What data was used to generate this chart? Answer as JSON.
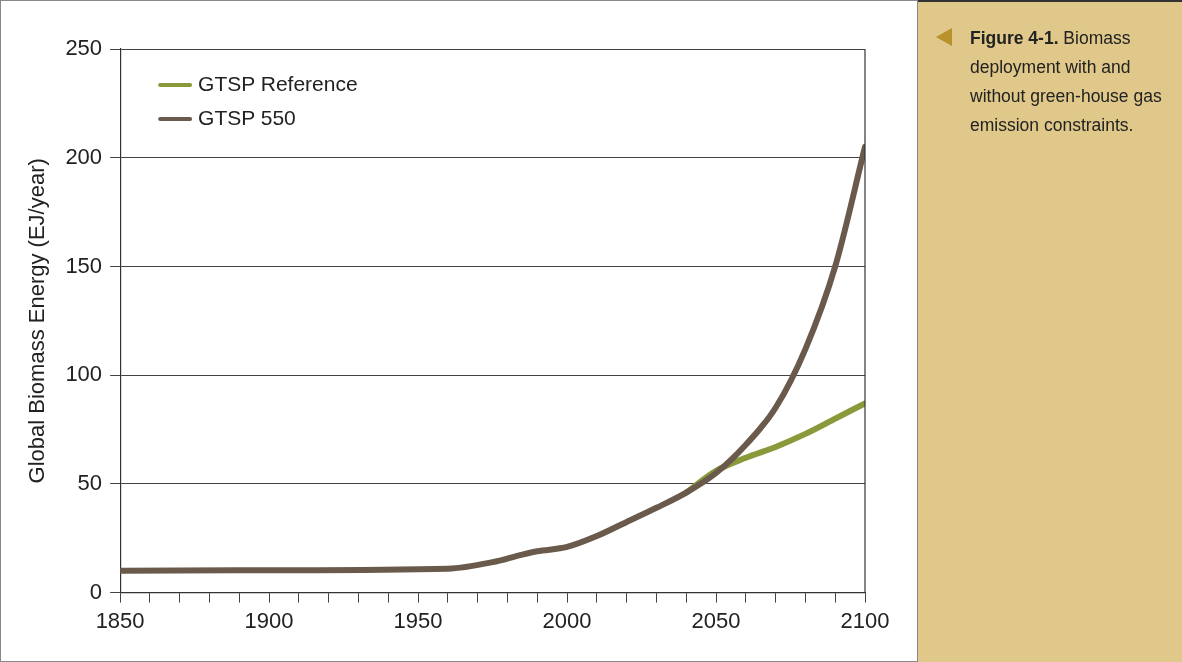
{
  "chart_data": {
    "type": "line",
    "x": [
      1850,
      1900,
      1960,
      1975,
      1985,
      1990,
      2000,
      2010,
      2020,
      2030,
      2040,
      2050,
      2060,
      2070,
      2080,
      2090,
      2100
    ],
    "series": [
      {
        "name": "GTSP Reference",
        "color": "#8a9a3a",
        "values": [
          null,
          null,
          null,
          null,
          null,
          null,
          null,
          null,
          null,
          null,
          46,
          56,
          62,
          67,
          73,
          80,
          87
        ]
      },
      {
        "name": "GTSP 550",
        "color": "#6a5a4c",
        "values": [
          10,
          10.3,
          11,
          14,
          17.5,
          19,
          21,
          26,
          32.5,
          39,
          46,
          55,
          68,
          85,
          112,
          150,
          205
        ]
      }
    ],
    "ylabel": "Global Biomass Energy (EJ/year)",
    "xlim": [
      1850,
      2100
    ],
    "xticks": [
      1850,
      {
        "value": 1860,
        "label": null
      },
      {
        "value": 1870,
        "label": null
      },
      {
        "value": 1880,
        "label": null
      },
      {
        "value": 1890,
        "label": null
      },
      1900,
      {
        "value": 1910,
        "label": null
      },
      {
        "value": 1920,
        "label": null
      },
      {
        "value": 1930,
        "label": null
      },
      {
        "value": 1940,
        "label": null
      },
      1950,
      {
        "value": 1960,
        "label": null
      },
      {
        "value": 1970,
        "label": null
      },
      {
        "value": 1980,
        "label": null
      },
      {
        "value": 1990,
        "label": null
      },
      2000,
      {
        "value": 2010,
        "label": null
      },
      {
        "value": 2020,
        "label": null
      },
      {
        "value": 2030,
        "label": null
      },
      {
        "value": 2040,
        "label": null
      },
      2050,
      {
        "value": 2060,
        "label": null
      },
      {
        "value": 2070,
        "label": null
      },
      {
        "value": 2080,
        "label": null
      },
      {
        "value": 2090,
        "label": null
      },
      2100
    ],
    "ylim": [
      0,
      250
    ],
    "yticks": [
      0,
      50,
      100,
      150,
      200,
      250
    ],
    "grid": "y",
    "legend": "top left",
    "marker": "none",
    "line_style": "solid",
    "annotations": [
      "Figure 4-1. Biomass deployment with and without green-house gas emission constraints."
    ]
  }
}
